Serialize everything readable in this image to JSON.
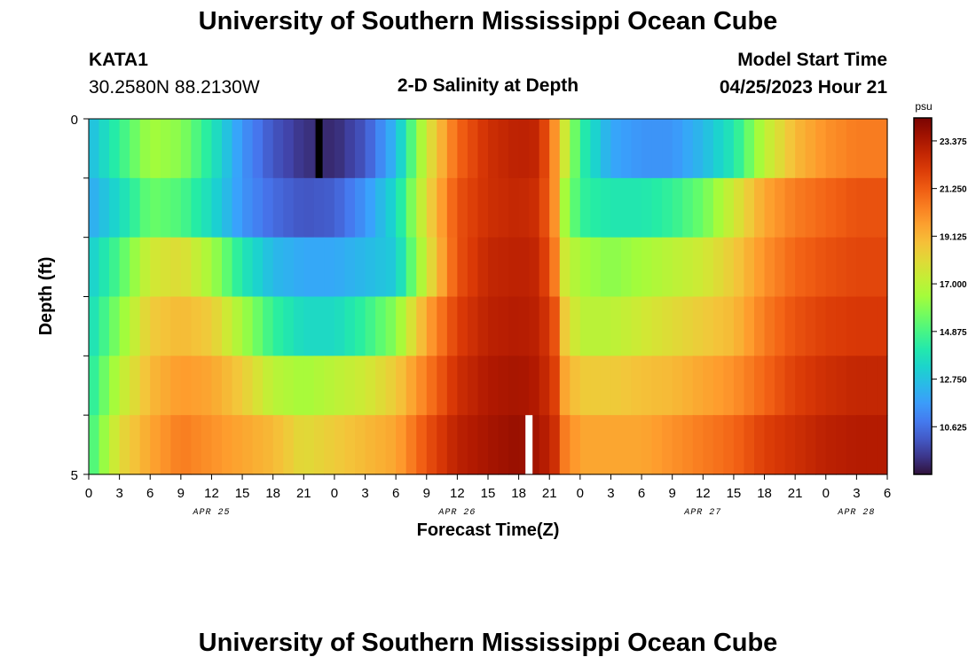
{
  "header": {
    "title": "University of Southern Mississippi Ocean Cube",
    "station_id": "KATA1",
    "coords": "30.2580N  88.2130W",
    "plot_title": "2-D Salinity at Depth",
    "model_start_label": "Model Start Time",
    "model_start_value": "04/25/2023 Hour 21"
  },
  "footer": {
    "title": "University of Southern Mississippi Ocean Cube"
  },
  "chart_data": {
    "type": "heatmap",
    "title": "2-D Salinity at Depth",
    "xlabel": "Forecast Time(Z)",
    "ylabel": "Depth (ft)",
    "ylim": [
      0,
      5
    ],
    "y_tick_labels": [
      "0",
      "5"
    ],
    "x_tick_labels": [
      "0",
      "3",
      "6",
      "9",
      "12",
      "15",
      "18",
      "21",
      "0",
      "3",
      "6",
      "9",
      "12",
      "15",
      "18",
      "21",
      "0",
      "3",
      "6",
      "9",
      "12",
      "15",
      "18",
      "21",
      "0",
      "3",
      "6"
    ],
    "date_labels": [
      {
        "label": "APR 25",
        "tick_index": 4
      },
      {
        "label": "APR 26",
        "tick_index": 12
      },
      {
        "label": "APR 27",
        "tick_index": 20
      },
      {
        "label": "APR 28",
        "tick_index": 25
      }
    ],
    "x_hours_start": 0,
    "x_hours_end": 78,
    "depth_rows_ft": [
      0,
      1,
      2,
      3,
      4,
      5
    ],
    "colorbar": {
      "unit": "psu",
      "vmin": 8.5,
      "vmax": 24.4,
      "ticks": [
        "23.375",
        "21.250",
        "19.125",
        "17.000",
        "14.875",
        "12.750",
        "10.625"
      ],
      "tick_values": [
        23.375,
        21.25,
        19.125,
        17.0,
        14.875,
        12.75,
        10.625
      ]
    },
    "salinity_keyframes_psu": [
      {
        "row": 0,
        "points": [
          [
            0,
            12.5
          ],
          [
            3,
            14.5
          ],
          [
            6,
            16.5
          ],
          [
            9,
            16.0
          ],
          [
            12,
            14.0
          ],
          [
            15,
            11.5
          ],
          [
            18,
            10.0
          ],
          [
            21,
            9.2
          ],
          [
            24,
            9.0
          ],
          [
            27,
            10.0
          ],
          [
            30,
            12.5
          ],
          [
            33,
            17.5
          ],
          [
            36,
            21.0
          ],
          [
            39,
            22.5
          ],
          [
            42,
            23.0
          ],
          [
            44,
            22.8
          ],
          [
            45.5,
            20.0
          ],
          [
            46.5,
            17.5
          ],
          [
            48,
            14.5
          ],
          [
            51,
            12.0
          ],
          [
            54,
            11.5
          ],
          [
            57,
            11.5
          ],
          [
            60,
            12.5
          ],
          [
            63,
            14.0
          ],
          [
            66,
            17.0
          ],
          [
            69,
            19.0
          ],
          [
            72,
            20.0
          ],
          [
            75,
            20.5
          ],
          [
            78,
            20.5
          ]
        ]
      },
      {
        "row": 1,
        "points": [
          [
            0,
            12.0
          ],
          [
            3,
            13.5
          ],
          [
            6,
            15.5
          ],
          [
            9,
            15.0
          ],
          [
            12,
            13.5
          ],
          [
            15,
            11.5
          ],
          [
            18,
            10.5
          ],
          [
            21,
            10.0
          ],
          [
            24,
            10.2
          ],
          [
            27,
            11.5
          ],
          [
            30,
            13.5
          ],
          [
            33,
            18.0
          ],
          [
            36,
            21.5
          ],
          [
            39,
            22.5
          ],
          [
            42,
            22.8
          ],
          [
            44,
            22.5
          ],
          [
            45.5,
            20.0
          ],
          [
            46.5,
            16.5
          ],
          [
            48,
            14.5
          ],
          [
            51,
            14.0
          ],
          [
            54,
            14.0
          ],
          [
            57,
            14.5
          ],
          [
            60,
            15.5
          ],
          [
            63,
            17.5
          ],
          [
            66,
            19.5
          ],
          [
            69,
            20.5
          ],
          [
            72,
            21.0
          ],
          [
            75,
            21.5
          ],
          [
            78,
            21.5
          ]
        ]
      },
      {
        "row": 2,
        "points": [
          [
            0,
            13.0
          ],
          [
            3,
            15.0
          ],
          [
            6,
            17.5
          ],
          [
            9,
            18.0
          ],
          [
            12,
            16.5
          ],
          [
            15,
            14.0
          ],
          [
            18,
            12.5
          ],
          [
            21,
            12.0
          ],
          [
            24,
            12.0
          ],
          [
            27,
            12.5
          ],
          [
            30,
            13.0
          ],
          [
            33,
            17.5
          ],
          [
            36,
            21.5
          ],
          [
            39,
            22.8
          ],
          [
            42,
            23.0
          ],
          [
            44,
            22.8
          ],
          [
            45.5,
            20.5
          ],
          [
            46.5,
            17.5
          ],
          [
            48,
            16.5
          ],
          [
            51,
            16.0
          ],
          [
            54,
            16.5
          ],
          [
            57,
            17.0
          ],
          [
            60,
            17.5
          ],
          [
            63,
            18.5
          ],
          [
            66,
            20.0
          ],
          [
            69,
            21.0
          ],
          [
            72,
            21.5
          ],
          [
            75,
            21.8
          ],
          [
            78,
            21.8
          ]
        ]
      },
      {
        "row": 3,
        "points": [
          [
            0,
            13.5
          ],
          [
            3,
            16.0
          ],
          [
            6,
            18.5
          ],
          [
            9,
            19.0
          ],
          [
            12,
            18.5
          ],
          [
            15,
            16.5
          ],
          [
            18,
            14.5
          ],
          [
            21,
            13.5
          ],
          [
            24,
            13.5
          ],
          [
            27,
            14.5
          ],
          [
            30,
            16.0
          ],
          [
            33,
            19.5
          ],
          [
            36,
            22.0
          ],
          [
            39,
            23.0
          ],
          [
            42,
            23.2
          ],
          [
            44,
            23.0
          ],
          [
            45.5,
            21.5
          ],
          [
            46.5,
            18.5
          ],
          [
            48,
            17.0
          ],
          [
            51,
            17.0
          ],
          [
            54,
            17.5
          ],
          [
            57,
            18.0
          ],
          [
            60,
            18.5
          ],
          [
            63,
            19.0
          ],
          [
            66,
            20.5
          ],
          [
            69,
            21.5
          ],
          [
            72,
            22.0
          ],
          [
            75,
            22.2
          ],
          [
            78,
            22.2
          ]
        ]
      },
      {
        "row": 4,
        "points": [
          [
            0,
            14.0
          ],
          [
            3,
            17.0
          ],
          [
            6,
            19.0
          ],
          [
            9,
            19.8
          ],
          [
            12,
            19.5
          ],
          [
            15,
            18.5
          ],
          [
            18,
            17.0
          ],
          [
            21,
            16.5
          ],
          [
            24,
            17.0
          ],
          [
            27,
            17.5
          ],
          [
            30,
            18.5
          ],
          [
            33,
            20.5
          ],
          [
            36,
            22.5
          ],
          [
            39,
            23.3
          ],
          [
            42,
            23.5
          ],
          [
            44,
            23.2
          ],
          [
            45.5,
            22.0
          ],
          [
            46.5,
            19.5
          ],
          [
            48,
            18.5
          ],
          [
            51,
            18.5
          ],
          [
            54,
            18.8
          ],
          [
            57,
            19.0
          ],
          [
            60,
            19.5
          ],
          [
            63,
            20.0
          ],
          [
            66,
            21.0
          ],
          [
            69,
            22.0
          ],
          [
            72,
            22.5
          ],
          [
            75,
            22.8
          ],
          [
            78,
            22.8
          ]
        ]
      },
      {
        "row": 5,
        "points": [
          [
            0,
            14.5
          ],
          [
            3,
            18.0
          ],
          [
            6,
            19.5
          ],
          [
            9,
            20.5
          ],
          [
            12,
            20.0
          ],
          [
            15,
            19.5
          ],
          [
            18,
            19.0
          ],
          [
            21,
            18.0
          ],
          [
            24,
            18.5
          ],
          [
            27,
            19.0
          ],
          [
            30,
            19.5
          ],
          [
            33,
            21.5
          ],
          [
            36,
            23.0
          ],
          [
            39,
            23.5
          ],
          [
            42,
            23.8
          ],
          [
            44,
            23.5
          ],
          [
            45.5,
            22.5
          ],
          [
            46.5,
            20.5
          ],
          [
            48,
            19.5
          ],
          [
            51,
            19.5
          ],
          [
            54,
            19.5
          ],
          [
            57,
            20.0
          ],
          [
            60,
            20.5
          ],
          [
            63,
            21.0
          ],
          [
            66,
            22.0
          ],
          [
            69,
            22.5
          ],
          [
            72,
            23.0
          ],
          [
            75,
            23.2
          ],
          [
            78,
            23.2
          ]
        ]
      }
    ],
    "markers": [
      {
        "name": "min-marker",
        "hour": 22.5,
        "row": 0,
        "color": "#000000"
      },
      {
        "name": "max-marker",
        "hour": 43.0,
        "row": 5,
        "color": "#ffffff"
      }
    ],
    "colormap_stops": [
      [
        0.0,
        "#30123b"
      ],
      [
        0.07,
        "#4145ab"
      ],
      [
        0.14,
        "#4675ed"
      ],
      [
        0.21,
        "#39a2fc"
      ],
      [
        0.29,
        "#1bcfd4"
      ],
      [
        0.36,
        "#24eca6"
      ],
      [
        0.43,
        "#61fc6c"
      ],
      [
        0.5,
        "#a4fc3b"
      ],
      [
        0.57,
        "#d1e834"
      ],
      [
        0.64,
        "#f3c63a"
      ],
      [
        0.71,
        "#fe9b2d"
      ],
      [
        0.79,
        "#f36315"
      ],
      [
        0.86,
        "#d93806"
      ],
      [
        0.93,
        "#b11901"
      ],
      [
        1.0,
        "#7a0402"
      ]
    ]
  }
}
